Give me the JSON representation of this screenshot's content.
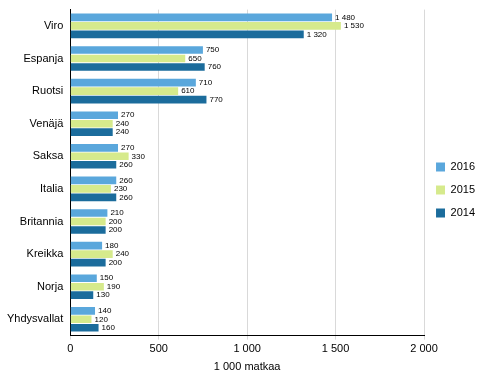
{
  "chart_data": {
    "type": "bar",
    "orientation": "horizontal",
    "categories": [
      "Viro",
      "Espanja",
      "Ruotsi",
      "Venäjä",
      "Saksa",
      "Italia",
      "Britannia",
      "Kreikka",
      "Norja",
      "Yhdysvallat"
    ],
    "series": [
      {
        "name": "2016",
        "color": "#5aa7dc",
        "values": [
          1480,
          750,
          710,
          270,
          270,
          260,
          210,
          180,
          150,
          140
        ],
        "value_labels": [
          "1 480",
          "750",
          "710",
          "270",
          "270",
          "260",
          "210",
          "180",
          "150",
          "140"
        ]
      },
      {
        "name": "2015",
        "color": "#d6ea8c",
        "values": [
          1530,
          650,
          610,
          240,
          330,
          230,
          200,
          240,
          190,
          120
        ],
        "value_labels": [
          "1 530",
          "650",
          "610",
          "240",
          "330",
          "230",
          "200",
          "240",
          "190",
          "120"
        ]
      },
      {
        "name": "2014",
        "color": "#1b6c9c",
        "values": [
          1320,
          760,
          770,
          240,
          260,
          260,
          200,
          200,
          130,
          160
        ],
        "value_labels": [
          "1 320",
          "760",
          "770",
          "240",
          "260",
          "260",
          "200",
          "200",
          "130",
          "160"
        ]
      }
    ],
    "xlabel": "1 000 matkaa",
    "xlim": [
      0,
      2000
    ],
    "xticks": [
      0,
      500,
      {
        "value": 1000,
        "label": "1 000"
      },
      {
        "value": 1500,
        "label": "1 500"
      },
      {
        "value": 2000,
        "label": "2 000"
      }
    ],
    "grid": true,
    "legend": "right",
    "data_labels": true
  }
}
